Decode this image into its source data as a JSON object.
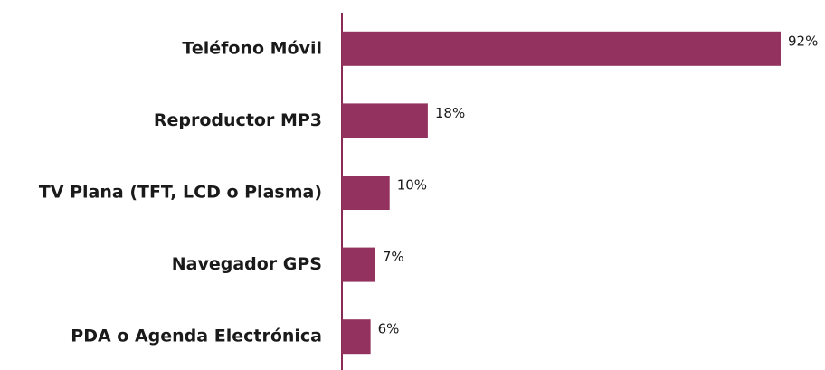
{
  "chart_data": {
    "type": "bar",
    "orientation": "horizontal",
    "categories": [
      "Teléfono Móvil",
      "Reproductor MP3",
      "TV Plana (TFT, LCD o Plasma)",
      "Navegador GPS",
      "PDA o Agenda Electrónica"
    ],
    "values": [
      92,
      18,
      10,
      7,
      6
    ],
    "value_labels": [
      "92%",
      "18%",
      "10%",
      "7%",
      "6%"
    ],
    "color": "#93325f"
  }
}
